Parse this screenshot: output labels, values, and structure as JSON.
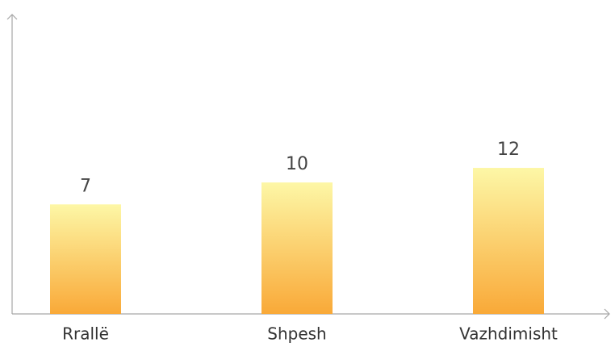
{
  "chart_data": {
    "type": "bar",
    "categories": [
      "Rrallë",
      "Shpesh",
      "Vazhdimisht"
    ],
    "values": [
      7,
      10,
      12
    ],
    "color": [
      "#fdf7a6",
      "#f9a938"
    ],
    "ylim": [
      -8,
      33
    ]
  }
}
